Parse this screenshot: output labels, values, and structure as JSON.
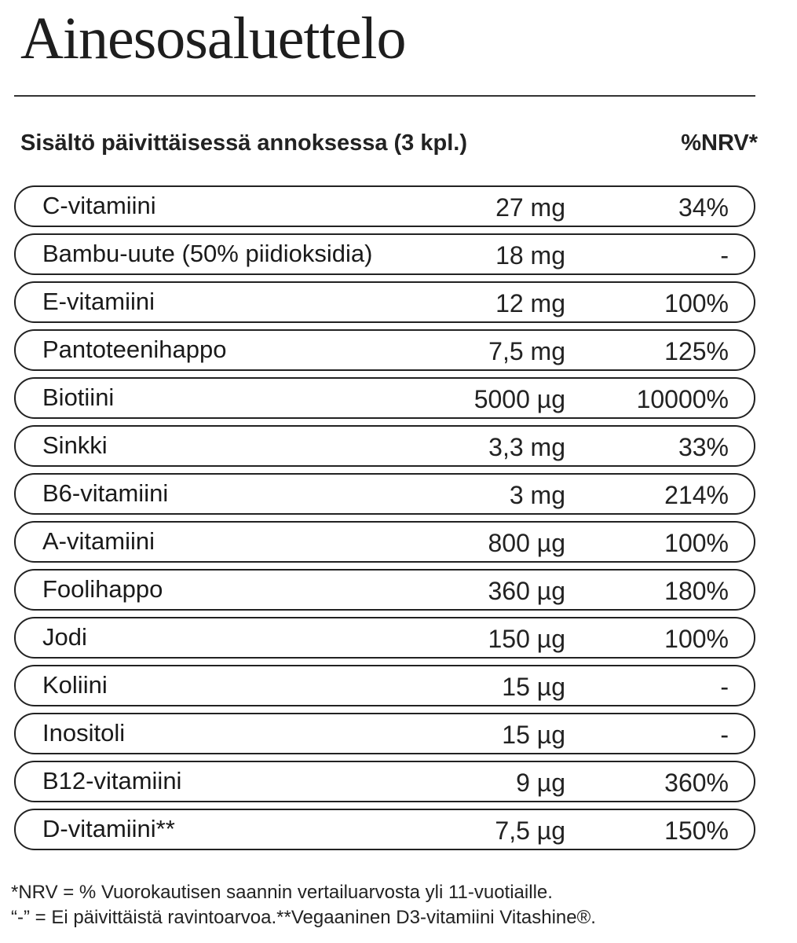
{
  "title": "Ainesosaluettelo",
  "header": {
    "left": "Sisältö päivittäisessä annoksessa (3 kpl.)",
    "right": "%NRV*"
  },
  "rows": [
    {
      "name": "C-vitamiini",
      "amount": "27 mg",
      "nrv": "34%"
    },
    {
      "name": "Bambu-uute (50% piidioksidia)",
      "amount": "18 mg",
      "nrv": "-"
    },
    {
      "name": "E-vitamiini",
      "amount": "12 mg",
      "nrv": "100%"
    },
    {
      "name": "Pantoteenihappo",
      "amount": "7,5 mg",
      "nrv": "125%"
    },
    {
      "name": "Biotiini",
      "amount": "5000 µg",
      "nrv": "10000%"
    },
    {
      "name": "Sinkki",
      "amount": "3,3 mg",
      "nrv": "33%"
    },
    {
      "name": "B6-vitamiini",
      "amount": "3 mg",
      "nrv": "214%"
    },
    {
      "name": "A-vitamiini",
      "amount": "800 µg",
      "nrv": "100%"
    },
    {
      "name": "Foolihappo",
      "amount": "360 µg",
      "nrv": "180%"
    },
    {
      "name": "Jodi",
      "amount": "150 µg",
      "nrv": "100%"
    },
    {
      "name": "Koliini",
      "amount": "15 µg",
      "nrv": "-"
    },
    {
      "name": "Inositoli",
      "amount": "15 µg",
      "nrv": "-"
    },
    {
      "name": "B12-vitamiini",
      "amount": "9 µg",
      "nrv": "360%"
    },
    {
      "name": "D-vitamiini**",
      "amount": "7,5 µg",
      "nrv": "150%"
    }
  ],
  "footnotes": [
    "*NRV = % Vuorokautisen saannin vertailuarvosta yli 11-vuotiaille.",
    "“-” = Ei päivittäistä ravintoarvoa.**Vegaaninen D3-vitamiini Vitashine®."
  ]
}
